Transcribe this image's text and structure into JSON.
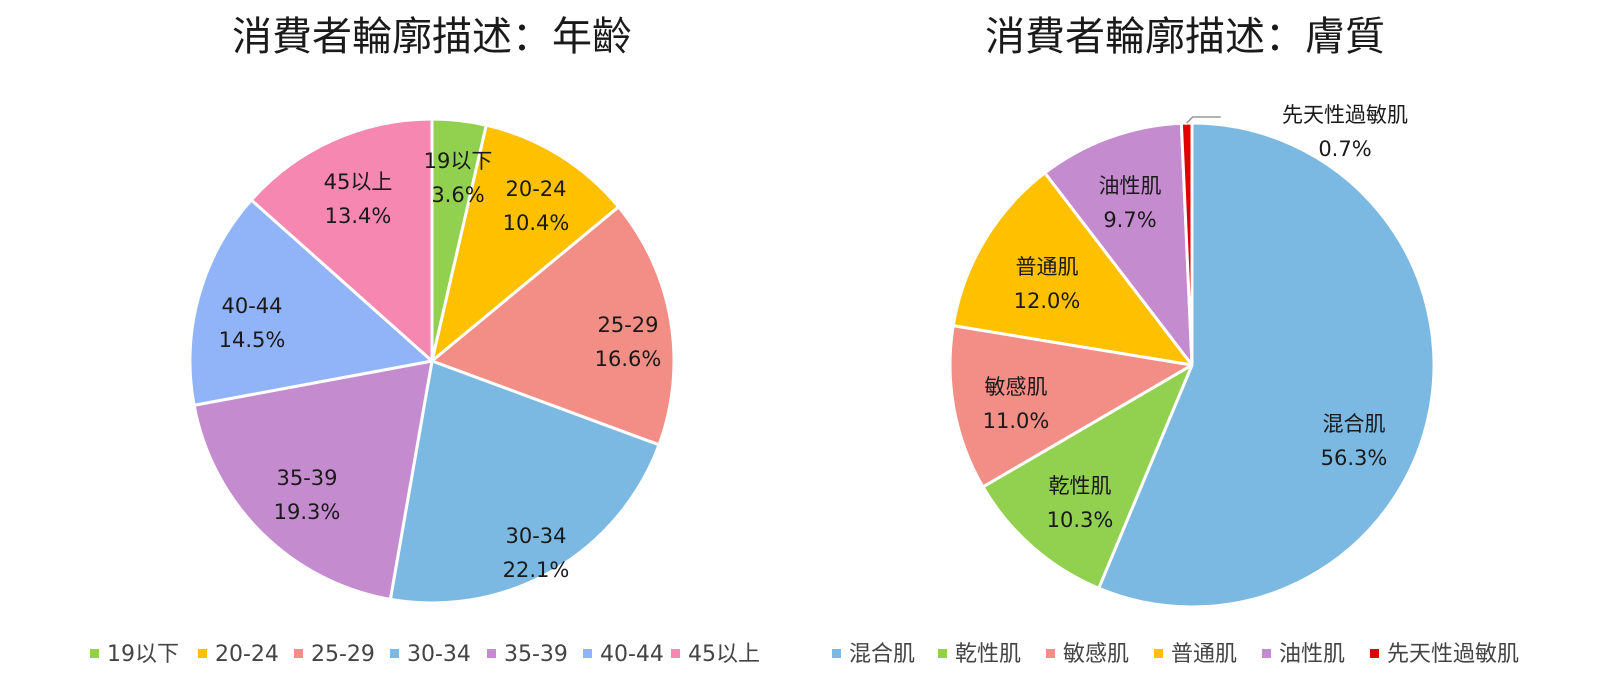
{
  "chart_data": [
    {
      "type": "pie",
      "title": "消費者輪廓描述：年齡",
      "categories": [
        "19以下",
        "20-24",
        "25-29",
        "30-34",
        "35-39",
        "40-44",
        "45以上"
      ],
      "values": [
        3.6,
        10.4,
        16.6,
        22.1,
        19.3,
        14.5,
        13.4
      ],
      "labels": [
        "3.6%",
        "10.4%",
        "16.6%",
        "22.1%",
        "19.3%",
        "14.5%",
        "13.4%"
      ],
      "colors": [
        "#92D050",
        "#FFC000",
        "#F28E85",
        "#7CB9E2",
        "#C58BCF",
        "#90B4F7",
        "#F587B0"
      ],
      "legend": "bottom"
    },
    {
      "type": "pie",
      "title": "消費者輪廓描述：膚質",
      "categories": [
        "混合肌",
        "乾性肌",
        "敏感肌",
        "普通肌",
        "油性肌",
        "先天性過敏肌"
      ],
      "values": [
        56.3,
        10.3,
        11.0,
        12.0,
        9.7,
        0.7
      ],
      "labels": [
        "56.3%",
        "10.3%",
        "11.0%",
        "12.0%",
        "9.7%",
        "0.7%"
      ],
      "colors": [
        "#7CB9E2",
        "#92D050",
        "#F28E85",
        "#FFC000",
        "#C58BCF",
        "#E00000"
      ],
      "legend": "bottom"
    }
  ]
}
